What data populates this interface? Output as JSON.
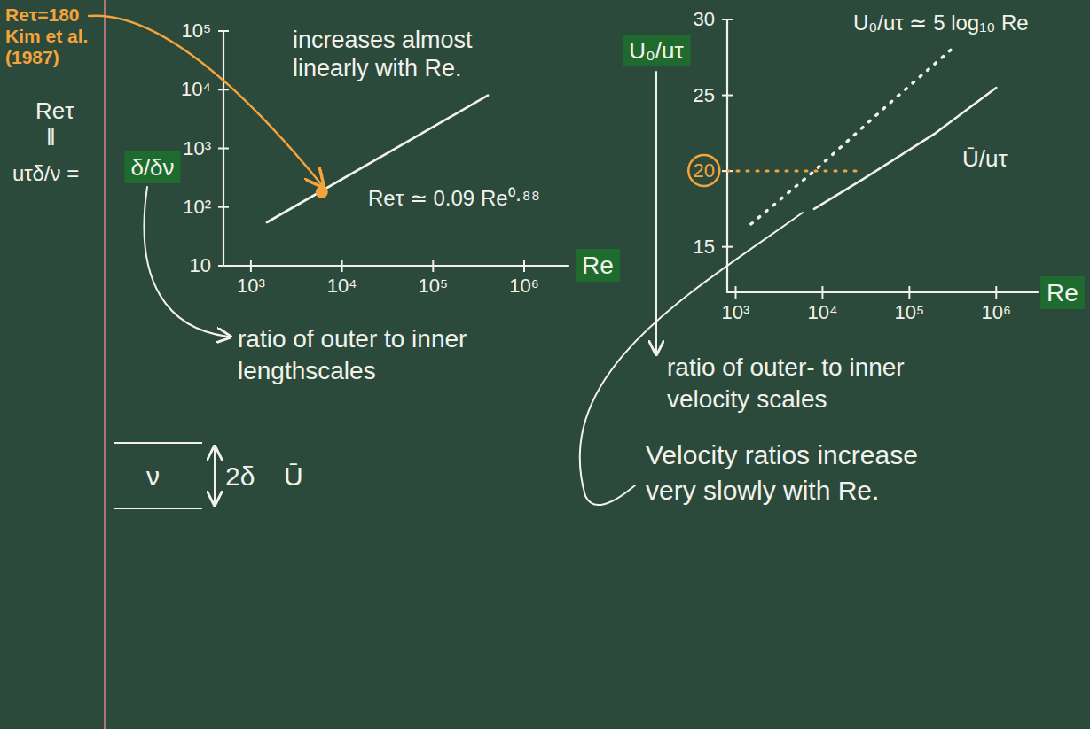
{
  "chart_data": [
    {
      "type": "line",
      "log": true,
      "x_label": "Re",
      "y_label": "δ/δν",
      "y_label_lines": [
        "Reτ",
        "‖",
        "uτδ/ν ="
      ],
      "xlim": [
        500,
        3000000
      ],
      "ylim": [
        10,
        100000
      ],
      "xticks": [
        {
          "value": 1000,
          "label": "10³"
        },
        {
          "value": 10000,
          "label": "10⁴"
        },
        {
          "value": 100000,
          "label": "10⁵"
        },
        {
          "value": 1000000,
          "label": "10⁶"
        }
      ],
      "yticks": [
        10,
        {
          "value": 100,
          "label": "10²"
        },
        {
          "value": 1000,
          "label": "10³"
        },
        {
          "value": 10000,
          "label": "10⁴"
        },
        {
          "value": 100000,
          "label": "10⁵"
        }
      ],
      "series": [
        {
          "name": "Reτ ≃ 0.09 Re⁰·⁸⁸",
          "color": "#f2f2ec",
          "line_style": "solid",
          "x": [
            1500,
            400000
          ],
          "values": [
            55,
            8000
          ]
        },
        {
          "name": "Reτ=180 Kim et al. (1987)",
          "type": "scatter",
          "marker": "circle",
          "color": "#f5a33b",
          "x": [
            6000
          ],
          "values": [
            180
          ]
        }
      ],
      "annotations": [
        "increases almost linearly with Re.",
        "ratio of outer to inner lengthscales"
      ]
    },
    {
      "type": "line",
      "log": "x",
      "x_label": "Re",
      "y_label": "U₀/uτ",
      "xlim": [
        800,
        3000000
      ],
      "ylim": [
        12,
        30
      ],
      "xticks": [
        {
          "value": 1000,
          "label": "10³"
        },
        {
          "value": 10000,
          "label": "10⁴"
        },
        {
          "value": 100000,
          "label": "10⁵"
        },
        {
          "value": 1000000,
          "label": "10⁶"
        }
      ],
      "yticks": [
        15,
        20,
        25,
        30
      ],
      "series": [
        {
          "name": "U₀/uτ ≃ 5 log₁₀ Re",
          "color": "#f2f2ec",
          "line_style": "dotted",
          "x": [
            1500,
            8000,
            60000,
            300000
          ],
          "values": [
            16.5,
            20,
            24.5,
            28
          ]
        },
        {
          "name": "Ū/uτ",
          "color": "#f2f2ec",
          "line_style": "solid",
          "x": [
            8000,
            30000,
            200000,
            1000000
          ],
          "values": [
            17.5,
            19.5,
            22.5,
            25.5
          ]
        }
      ],
      "reference_lines": [
        {
          "value": 20,
          "color": "#f5a33b",
          "line_style": "dotted"
        }
      ],
      "annotations": [
        "ratio of outer- to inner velocity scales",
        "Velocity ratios increase very slowly with Re."
      ]
    }
  ],
  "sketch": {
    "labels": [
      "ν",
      "2δ",
      "Ū"
    ]
  }
}
